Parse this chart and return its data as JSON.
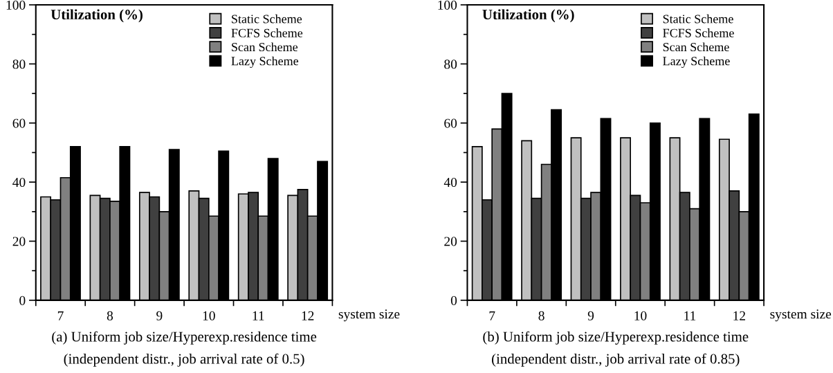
{
  "chart_data": [
    {
      "type": "bar",
      "ylabel": "Utilization (%)",
      "xlabel": "system size",
      "categories": [
        "7",
        "8",
        "9",
        "10",
        "11",
        "12"
      ],
      "series": [
        {
          "name": "Static Scheme",
          "color": "#c0c0c0",
          "values": [
            35,
            35.5,
            36.5,
            37,
            36,
            35.5
          ]
        },
        {
          "name": "FCFS Scheme",
          "color": "#404040",
          "values": [
            34,
            34.5,
            35,
            34.5,
            36.5,
            37.5
          ]
        },
        {
          "name": "Scan Scheme",
          "color": "#808080",
          "values": [
            41.5,
            33.5,
            30,
            28.5,
            28.5,
            28.5
          ]
        },
        {
          "name": "Lazy Scheme",
          "color": "#000000",
          "values": [
            52,
            52,
            51,
            50.5,
            48,
            47
          ]
        }
      ],
      "ylim": [
        0,
        100
      ],
      "yticks": [
        0,
        20,
        40,
        60,
        80,
        100
      ],
      "legend": "top right",
      "grid": false,
      "annotations": [
        "(a) Uniform job size/Hyperexp.residence time",
        "(independent distr., job arrival rate of 0.5)"
      ]
    },
    {
      "type": "bar",
      "ylabel": "Utilization (%)",
      "xlabel": "system size",
      "categories": [
        "7",
        "8",
        "9",
        "10",
        "11",
        "12"
      ],
      "series": [
        {
          "name": "Static Scheme",
          "color": "#c0c0c0",
          "values": [
            52,
            54,
            55,
            55,
            55,
            54.5
          ]
        },
        {
          "name": "FCFS Scheme",
          "color": "#404040",
          "values": [
            34,
            34.5,
            34.5,
            35.5,
            36.5,
            37
          ]
        },
        {
          "name": "Scan Scheme",
          "color": "#808080",
          "values": [
            58,
            46,
            36.5,
            33,
            31,
            30
          ]
        },
        {
          "name": "Lazy Scheme",
          "color": "#000000",
          "values": [
            70,
            64.5,
            61.5,
            60,
            61.5,
            63
          ]
        }
      ],
      "ylim": [
        0,
        100
      ],
      "yticks": [
        0,
        20,
        40,
        60,
        80,
        100
      ],
      "legend": "top right",
      "grid": false,
      "annotations": [
        "(b) Uniform job size/Hyperexp.residence time",
        "(independent distr., job arrival rate of 0.85)"
      ]
    }
  ]
}
